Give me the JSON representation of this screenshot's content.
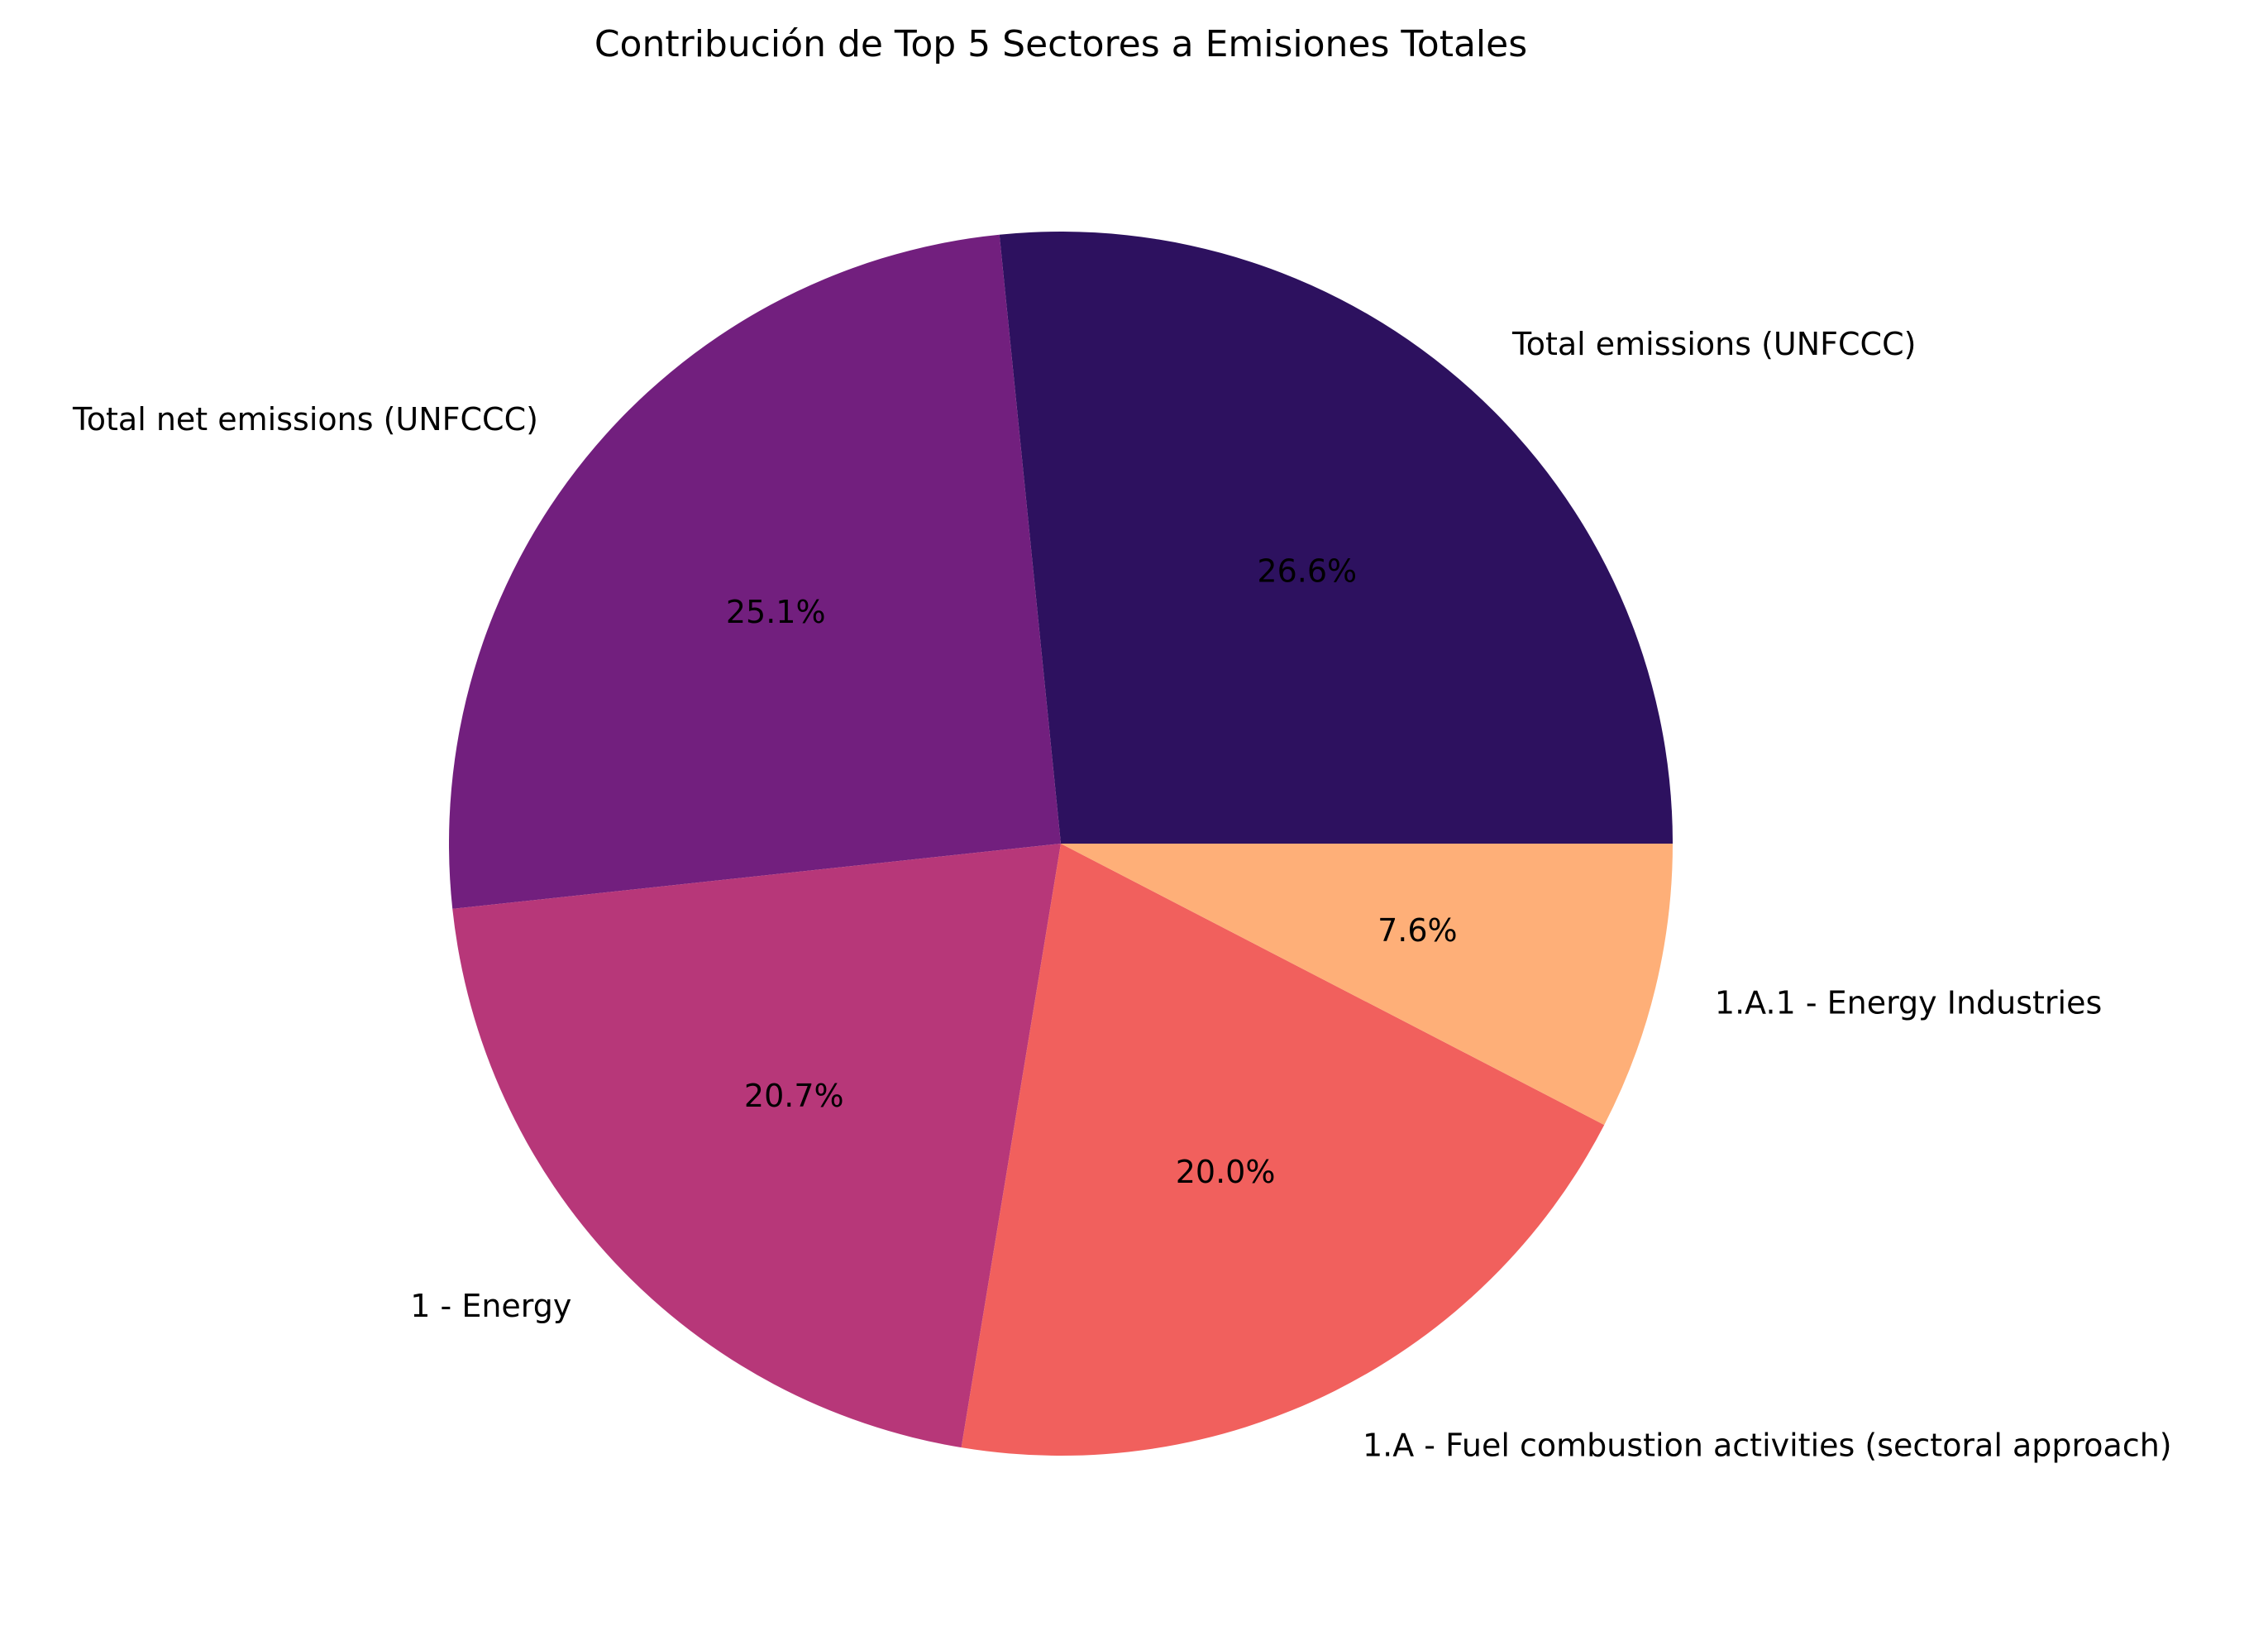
{
  "chart_data": {
    "type": "pie",
    "title": "Contribución de Top 5 Sectores a Emisiones Totales",
    "start_angle_deg": 0,
    "direction": "counterclockwise",
    "slices": [
      {
        "label": "Total emissions (UNFCCC)",
        "value": 26.6,
        "pct_label": "26.6%",
        "color": "#2d115f"
      },
      {
        "label": "Total net emissions (UNFCCC)",
        "value": 25.1,
        "pct_label": "25.1%",
        "color": "#721f7e"
      },
      {
        "label": "1 - Energy",
        "value": 20.7,
        "pct_label": "20.7%",
        "color": "#b73779"
      },
      {
        "label": "1.A - Fuel combustion activities (sectoral approach)",
        "value": 20.0,
        "pct_label": "20.0%",
        "color": "#f1605d"
      },
      {
        "label": "1.A.1 - Energy Industries",
        "value": 7.6,
        "pct_label": "7.6%",
        "color": "#feaf78"
      }
    ]
  }
}
